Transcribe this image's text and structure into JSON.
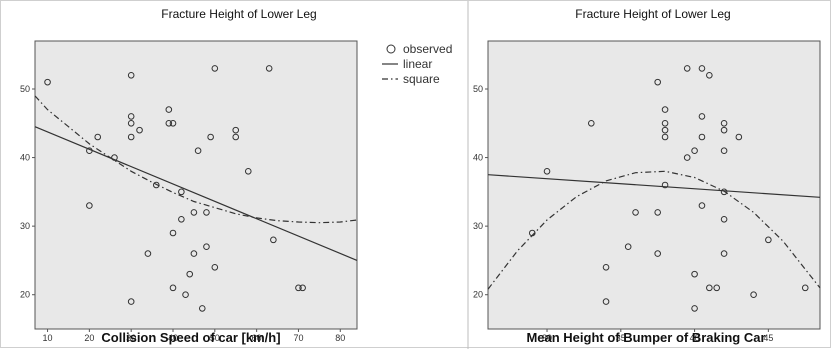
{
  "chart_data": [
    {
      "type": "scatter",
      "title": "Fracture Height of Lower Leg",
      "xlabel": "Collision Speed of car [km/h]",
      "ylabel": "",
      "xlim": [
        7,
        84
      ],
      "ylim": [
        15,
        57
      ],
      "xticks": [
        10,
        20,
        30,
        40,
        50,
        60,
        70,
        80
      ],
      "yticks": [
        20,
        30,
        40,
        50
      ],
      "grid": false,
      "background": "#e8e8e8",
      "legend": {
        "position": "right",
        "entries": [
          {
            "label": "observed",
            "style": "circle"
          },
          {
            "label": "linear",
            "style": "solid"
          },
          {
            "label": "square",
            "style": "dashdot"
          }
        ]
      },
      "series": [
        {
          "name": "observed",
          "style": "circle",
          "points": [
            [
              10,
              51
            ],
            [
              20,
              33
            ],
            [
              20,
              41
            ],
            [
              22,
              43
            ],
            [
              26,
              40
            ],
            [
              30,
              52
            ],
            [
              30,
              46
            ],
            [
              30,
              45
            ],
            [
              30,
              43
            ],
            [
              30,
              19
            ],
            [
              32,
              44
            ],
            [
              34,
              26
            ],
            [
              36,
              36
            ],
            [
              39,
              47
            ],
            [
              39,
              45
            ],
            [
              40,
              45
            ],
            [
              40,
              29
            ],
            [
              40,
              21
            ],
            [
              42,
              31
            ],
            [
              42,
              35
            ],
            [
              43,
              20
            ],
            [
              44,
              23
            ],
            [
              45,
              26
            ],
            [
              45,
              32
            ],
            [
              46,
              41
            ],
            [
              47,
              18
            ],
            [
              48,
              32
            ],
            [
              48,
              27
            ],
            [
              49,
              43
            ],
            [
              50,
              24
            ],
            [
              50,
              53
            ],
            [
              55,
              44
            ],
            [
              55,
              43
            ],
            [
              58,
              38
            ],
            [
              63,
              53
            ],
            [
              64,
              28
            ],
            [
              70,
              21
            ],
            [
              71,
              21
            ]
          ]
        },
        {
          "name": "linear",
          "style": "solid",
          "x": [
            7,
            84
          ],
          "y": [
            44.5,
            25
          ]
        },
        {
          "name": "square",
          "style": "dashdot",
          "x": [
            7,
            10,
            15,
            20,
            25,
            30,
            35,
            40,
            45,
            50,
            55,
            60,
            65,
            70,
            75,
            80,
            84
          ],
          "y": [
            49,
            47,
            44.5,
            42,
            40,
            38,
            36.4,
            34.9,
            33.6,
            32.7,
            31.8,
            31.2,
            30.8,
            30.6,
            30.5,
            30.6,
            30.9
          ]
        }
      ]
    },
    {
      "type": "scatter",
      "title": "Fracture Height of Lower Leg",
      "xlabel": "Mean Height of Bumper of Braking Car",
      "ylabel": "",
      "xlim": [
        26,
        48.5
      ],
      "ylim": [
        15,
        57
      ],
      "xticks": [
        30,
        35,
        40,
        45
      ],
      "yticks": [
        20,
        30,
        40,
        50
      ],
      "grid": false,
      "background": "#e8e8e8",
      "series": [
        {
          "name": "observed",
          "style": "circle",
          "points": [
            [
              29,
              29
            ],
            [
              30,
              38
            ],
            [
              33,
              45
            ],
            [
              34,
              24
            ],
            [
              34,
              19
            ],
            [
              35.5,
              27
            ],
            [
              36,
              32
            ],
            [
              37.5,
              32
            ],
            [
              37.5,
              26
            ],
            [
              37.5,
              51
            ],
            [
              38,
              47
            ],
            [
              38,
              45
            ],
            [
              38,
              44
            ],
            [
              38,
              43
            ],
            [
              38,
              36
            ],
            [
              39.5,
              53
            ],
            [
              39.5,
              40
            ],
            [
              40,
              41
            ],
            [
              40,
              23
            ],
            [
              40,
              18
            ],
            [
              40.5,
              53
            ],
            [
              40.5,
              46
            ],
            [
              40.5,
              43
            ],
            [
              40.5,
              33
            ],
            [
              41,
              52
            ],
            [
              41,
              21
            ],
            [
              41.5,
              21
            ],
            [
              42,
              45
            ],
            [
              42,
              44
            ],
            [
              42,
              41
            ],
            [
              42,
              35
            ],
            [
              42,
              31
            ],
            [
              42,
              26
            ],
            [
              43,
              43
            ],
            [
              44,
              20
            ],
            [
              45,
              28
            ],
            [
              47.5,
              21
            ]
          ]
        },
        {
          "name": "linear",
          "style": "solid",
          "x": [
            26,
            48.5
          ],
          "y": [
            37.5,
            34.2
          ]
        },
        {
          "name": "square",
          "style": "dashdot",
          "x": [
            26,
            28,
            30,
            32,
            34,
            36,
            38,
            40,
            42,
            44,
            46,
            48.5
          ],
          "y": [
            20.8,
            26.4,
            30.9,
            34.3,
            36.6,
            37.8,
            38.0,
            37.1,
            35.1,
            32.0,
            27.8,
            21.0
          ]
        }
      ]
    }
  ]
}
